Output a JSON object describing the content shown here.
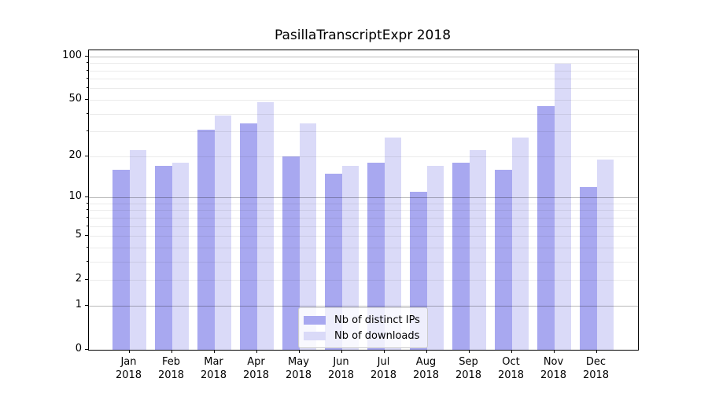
{
  "chart_data": {
    "type": "bar",
    "title": "PasillaTranscriptExpr 2018",
    "categories": [
      "Jan 2018",
      "Feb 2018",
      "Mar 2018",
      "Apr 2018",
      "May 2018",
      "Jun 2018",
      "Jul 2018",
      "Aug 2018",
      "Sep 2018",
      "Oct 2018",
      "Nov 2018",
      "Dec 2018"
    ],
    "series": [
      {
        "key": "distinct-ips",
        "name": "Nb of distinct IPs",
        "color": "#a8a8f0",
        "values": [
          16,
          17,
          31,
          34,
          20,
          15,
          18,
          11,
          18,
          16,
          45,
          12
        ]
      },
      {
        "key": "downloads",
        "name": "Nb of downloads",
        "color": "#dadaf8",
        "values": [
          22,
          18,
          39,
          48,
          34,
          17,
          27,
          17,
          22,
          27,
          89,
          19
        ]
      }
    ],
    "xlabel": "",
    "ylabel": "",
    "yscale": "log1p",
    "ylim": [
      0,
      110
    ],
    "yticks": [
      0,
      1,
      2,
      5,
      10,
      20,
      50,
      100
    ],
    "grid": true,
    "grid_major_values": [
      1,
      10,
      100
    ],
    "grid_minor_values": [
      2,
      3,
      4,
      5,
      6,
      7,
      8,
      9,
      20,
      30,
      40,
      50,
      60,
      70,
      80,
      90
    ],
    "grid_major_color": "#b9b9b9",
    "grid_minor_color": "#ebebeb",
    "axis_color": "#000000",
    "background_color": "#ffffff",
    "legend_position": "inside bottom-center"
  }
}
